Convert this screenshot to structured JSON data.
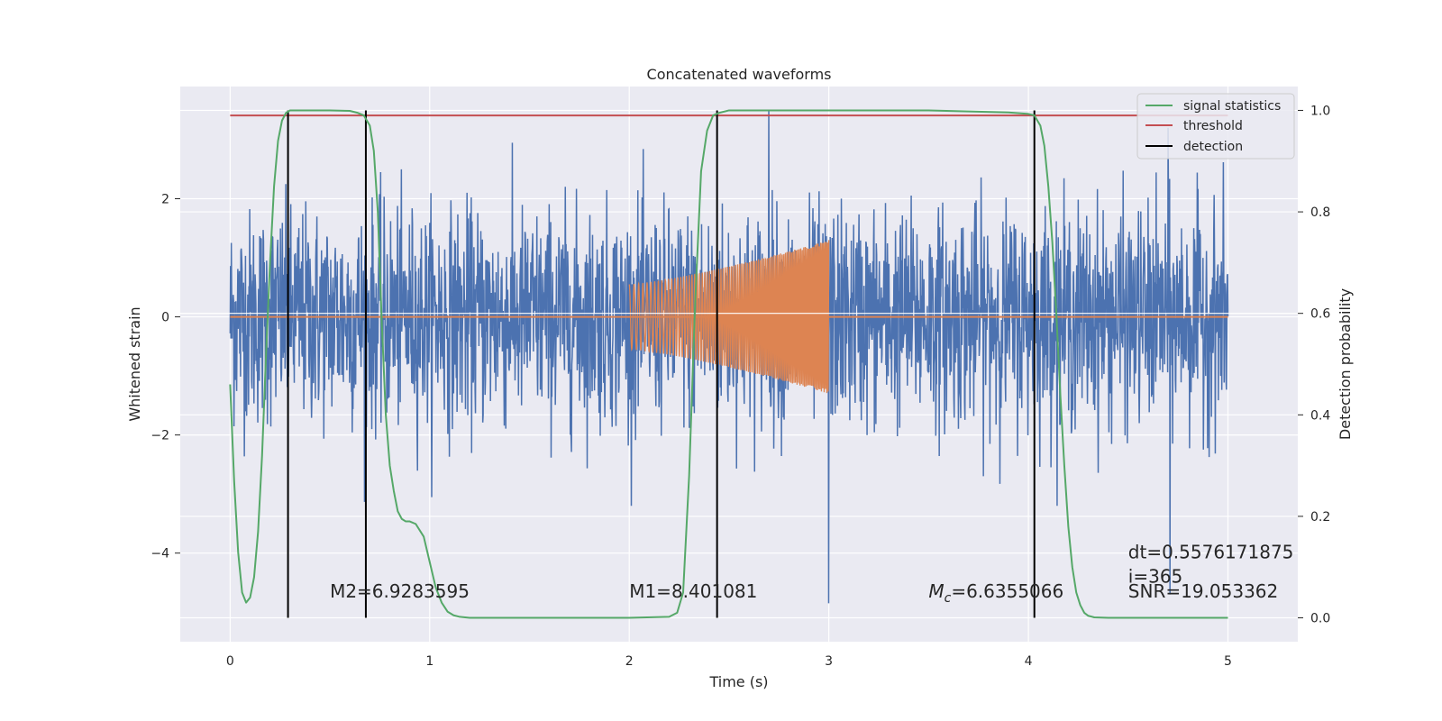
{
  "chart_data": {
    "type": "line",
    "title": "Concatenated waveforms",
    "xlabel": "Time (s)",
    "ylabel": "Whitened strain",
    "y2label": "Detection probability",
    "xlim": [
      -0.25,
      5.35
    ],
    "ylim": [
      -5.5,
      3.9
    ],
    "y2lim": [
      -0.047,
      1.047
    ],
    "xticks": [
      0,
      1,
      2,
      3,
      4,
      5
    ],
    "yticks": [
      -4,
      -2,
      0,
      2
    ],
    "y2ticks": [
      0.0,
      0.2,
      0.4,
      0.6,
      0.8,
      1.0
    ],
    "xtick_labels": [
      "0",
      "1",
      "2",
      "3",
      "4",
      "5"
    ],
    "ytick_labels": [
      "−4",
      "−2",
      "0",
      "2"
    ],
    "y2tick_labels": [
      "0.0",
      "0.2",
      "0.4",
      "0.6",
      "0.8",
      "1.0"
    ],
    "grid": true,
    "legend_position": "top-right",
    "colors": {
      "noise": "#4c72b0",
      "template": "#dd8452",
      "signal_statistics": "#55a868",
      "threshold": "#c44e52",
      "detection": "#000000",
      "plot_bg": "#eaeaf2",
      "grid": "#ffffff"
    },
    "series": [
      {
        "name": "signal statistics",
        "axis": "right",
        "x": [
          0.0,
          0.02,
          0.04,
          0.06,
          0.08,
          0.1,
          0.12,
          0.14,
          0.16,
          0.18,
          0.2,
          0.22,
          0.24,
          0.26,
          0.28,
          0.3,
          0.34,
          0.4,
          0.5,
          0.6,
          0.64,
          0.67,
          0.7,
          0.72,
          0.74,
          0.76,
          0.78,
          0.8,
          0.82,
          0.84,
          0.86,
          0.88,
          0.9,
          0.93,
          0.97,
          1.0,
          1.03,
          1.06,
          1.09,
          1.12,
          1.15,
          1.2,
          1.3,
          1.6,
          2.0,
          2.2,
          2.24,
          2.27,
          2.3,
          2.33,
          2.36,
          2.39,
          2.42,
          2.45,
          2.5,
          2.6,
          3.0,
          3.5,
          3.9,
          4.0,
          4.03,
          4.06,
          4.08,
          4.1,
          4.12,
          4.14,
          4.16,
          4.18,
          4.2,
          4.22,
          4.24,
          4.26,
          4.28,
          4.3,
          4.33,
          4.4,
          4.6,
          4.8,
          5.0
        ],
        "y": [
          0.46,
          0.27,
          0.13,
          0.05,
          0.03,
          0.04,
          0.08,
          0.17,
          0.32,
          0.52,
          0.7,
          0.85,
          0.94,
          0.98,
          0.995,
          1.0,
          1.0,
          1.0,
          1.0,
          0.999,
          0.995,
          0.99,
          0.97,
          0.92,
          0.8,
          0.58,
          0.4,
          0.3,
          0.25,
          0.21,
          0.195,
          0.19,
          0.19,
          0.185,
          0.16,
          0.11,
          0.06,
          0.03,
          0.012,
          0.005,
          0.002,
          0.0,
          0.0,
          0.0,
          0.0,
          0.002,
          0.01,
          0.05,
          0.28,
          0.62,
          0.88,
          0.96,
          0.99,
          0.995,
          1.0,
          1.0,
          1.0,
          1.0,
          0.996,
          0.993,
          0.99,
          0.97,
          0.93,
          0.85,
          0.74,
          0.6,
          0.44,
          0.3,
          0.18,
          0.1,
          0.05,
          0.025,
          0.01,
          0.004,
          0.001,
          0.0,
          0.0,
          0.0,
          0.0
        ]
      },
      {
        "name": "threshold",
        "axis": "right",
        "x": [
          0,
          5
        ],
        "y": [
          0.99,
          0.99
        ]
      },
      {
        "name": "detection",
        "axis": "right",
        "type": "vlines",
        "x": [
          0.29,
          0.68,
          2.44,
          4.03
        ],
        "ymin": 0.0,
        "ymax": 1.0
      },
      {
        "name": "",
        "axis": "left",
        "type": "noise",
        "x_range": [
          0,
          5
        ],
        "amplitude_sd": 0.9,
        "spikes": [
          {
            "x": 3.0,
            "y": -4.85
          },
          {
            "x": 4.71,
            "y": -4.7
          },
          {
            "x": 4.7,
            "y": 3.2
          },
          {
            "x": 2.7,
            "y": 3.5
          }
        ]
      },
      {
        "name": "",
        "axis": "left",
        "type": "chirp",
        "x_range": [
          2.0,
          3.0
        ],
        "amplitude_start": 0.55,
        "amplitude_end": 1.3,
        "y_offset": 0.0
      },
      {
        "name": "",
        "axis": "left",
        "type": "hline",
        "x": [
          0,
          5
        ],
        "y": [
          0,
          0
        ]
      }
    ],
    "annotations": [
      {
        "text": "M2=6.9283595",
        "x": 0.5,
        "y": -4.75
      },
      {
        "text": "M1=8.401081",
        "x": 2.0,
        "y": -4.75
      },
      {
        "text": "Mc",
        "sub": "c",
        "value": "=6.6355066",
        "x": 3.5,
        "y": -4.75
      },
      {
        "text": "dt=0.5576171875",
        "x": 4.5,
        "y": -4.09
      },
      {
        "text": " i=365",
        "x": 4.5,
        "y": -4.5
      },
      {
        "text": "SNR=19.053362",
        "x": 4.5,
        "y": -4.75
      }
    ]
  }
}
